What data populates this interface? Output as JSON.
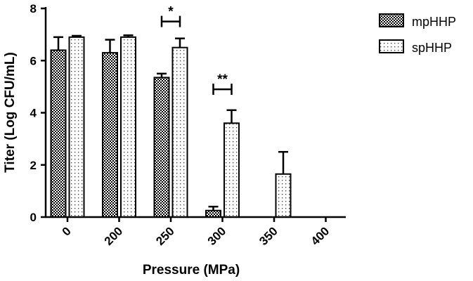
{
  "chart_data": {
    "type": "bar",
    "title": "",
    "xlabel": "Pressure (MPa)",
    "ylabel": "Titer (Log CFU/mL)",
    "ylim": [
      0,
      8
    ],
    "yticks": [
      "0",
      "2",
      "4",
      "6",
      "8"
    ],
    "categories": [
      "0",
      "200",
      "250",
      "300",
      "350",
      "400"
    ],
    "series": [
      {
        "name": "mpHHP",
        "pattern": "checker",
        "values": [
          6.4,
          6.3,
          5.35,
          0.25,
          0,
          0
        ],
        "errors": [
          0.5,
          0.5,
          0.15,
          0.15,
          0,
          0
        ]
      },
      {
        "name": "spHHP",
        "pattern": "dots",
        "values": [
          6.9,
          6.9,
          6.5,
          3.6,
          1.65,
          0
        ],
        "errors": [
          0.05,
          0.07,
          0.35,
          0.5,
          0.85,
          0
        ]
      }
    ],
    "significance": [
      {
        "category": "250",
        "label": "*",
        "y": 7.5
      },
      {
        "category": "300",
        "label": "**",
        "y": 4.9
      }
    ],
    "legend_position": "top-right",
    "grid": false
  }
}
